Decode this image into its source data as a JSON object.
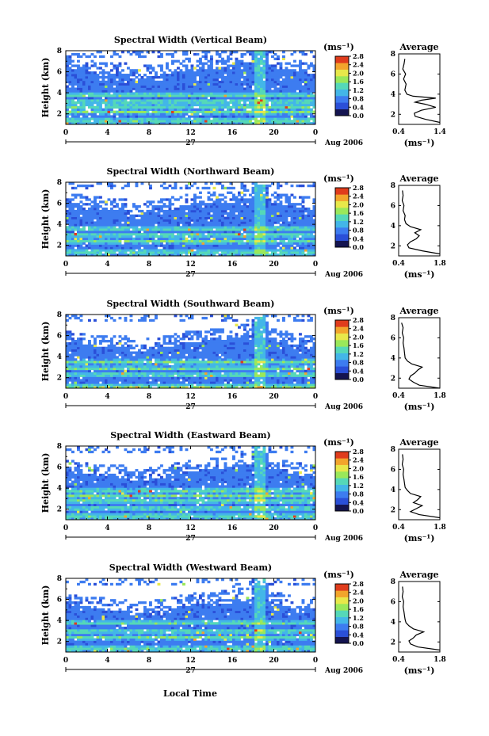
{
  "chart_data": [
    {
      "type": "heatmap",
      "title": "Spectral Width (Vertical Beam)",
      "ylabel": "Height (km)",
      "xlim": [
        0,
        24
      ],
      "xticks": [
        "0",
        "4",
        "8",
        "12",
        "16",
        "20",
        "0"
      ],
      "ylim": [
        1,
        8
      ],
      "yticks": [
        "2",
        "4",
        "6",
        "8"
      ],
      "date_label": "27",
      "month_label": "Aug 2006",
      "colorbar": {
        "unit": "(ms⁻¹)",
        "ticks": [
          "0.0",
          "0.4",
          "0.8",
          "1.2",
          "1.6",
          "2.0",
          "2.4",
          "2.8"
        ],
        "range": [
          0,
          2.8
        ]
      },
      "band_heights_km": [
        1.4,
        2.2,
        2.7,
        3.2,
        3.8
      ],
      "column_hour": 18.6,
      "cloud_top_km": 6.7,
      "profile": {
        "title": "Average",
        "xlabel": "(ms⁻¹)",
        "xlim": [
          0.4,
          1.4
        ],
        "xticks": [
          "0.4",
          "1.4"
        ],
        "ylim": [
          1,
          8
        ],
        "yticks": [
          "2",
          "4",
          "6",
          "8"
        ],
        "height_km": [
          1.2,
          1.5,
          1.8,
          2.1,
          2.4,
          2.7,
          3.0,
          3.2,
          3.4,
          3.6,
          3.8,
          4.0,
          4.4,
          5.0,
          5.5,
          6.0,
          6.5,
          7.0,
          7.5
        ],
        "width": [
          1.4,
          1.05,
          0.8,
          0.78,
          0.95,
          1.3,
          1.05,
          0.8,
          0.95,
          1.3,
          0.75,
          0.6,
          0.55,
          0.58,
          0.52,
          0.57,
          0.5,
          0.53,
          0.55
        ]
      }
    },
    {
      "type": "heatmap",
      "title": "Spectral Width (Northward Beam)",
      "ylabel": "Height (km)",
      "xlim": [
        0,
        24
      ],
      "xticks": [
        "0",
        "4",
        "8",
        "12",
        "16",
        "20",
        "0"
      ],
      "ylim": [
        1,
        8
      ],
      "yticks": [
        "2",
        "4",
        "6",
        "8"
      ],
      "date_label": "27",
      "month_label": "Aug 2006",
      "colorbar": {
        "unit": "(ms⁻¹)",
        "ticks": [
          "0.0",
          "0.4",
          "0.8",
          "1.2",
          "1.6",
          "2.0",
          "2.4",
          "2.8"
        ],
        "range": [
          0,
          2.8
        ]
      },
      "band_heights_km": [
        1.4,
        2.4,
        3.0,
        3.6
      ],
      "column_hour": 18.6,
      "cloud_top_km": 6.3,
      "profile": {
        "title": "Average",
        "xlabel": "(ms⁻¹)",
        "xlim": [
          0.4,
          1.8
        ],
        "xticks": [
          "0.4",
          "1.8"
        ],
        "ylim": [
          1,
          8
        ],
        "yticks": [
          "2",
          "4",
          "6",
          "8"
        ],
        "height_km": [
          1.2,
          1.5,
          1.8,
          2.1,
          2.4,
          2.7,
          3.0,
          3.3,
          3.6,
          3.9,
          4.2,
          4.6,
          5.0,
          5.5,
          6.0,
          6.5,
          7.0,
          7.5
        ],
        "width": [
          1.8,
          1.2,
          0.75,
          0.7,
          0.8,
          1.0,
          1.1,
          0.95,
          1.15,
          0.8,
          0.65,
          0.6,
          0.62,
          0.55,
          0.58,
          0.52,
          0.55,
          0.53
        ]
      }
    },
    {
      "type": "heatmap",
      "title": "Spectral Width (Southward Beam)",
      "ylabel": "Height (km)",
      "xlim": [
        0,
        24
      ],
      "xticks": [
        "0",
        "4",
        "8",
        "12",
        "16",
        "20",
        "0"
      ],
      "ylim": [
        1,
        8
      ],
      "yticks": [
        "2",
        "4",
        "6",
        "8"
      ],
      "date_label": "27",
      "month_label": "Aug 2006",
      "colorbar": {
        "unit": "(ms⁻¹)",
        "ticks": [
          "0.0",
          "0.4",
          "0.8",
          "1.2",
          "1.6",
          "2.0",
          "2.4",
          "2.8"
        ],
        "range": [
          0,
          2.8
        ]
      },
      "band_heights_km": [
        1.2,
        2.3,
        2.9,
        3.5
      ],
      "column_hour": 18.6,
      "cloud_top_km": 5.8,
      "profile": {
        "title": "Average",
        "xlabel": "(ms⁻¹)",
        "xlim": [
          0.4,
          1.8
        ],
        "xticks": [
          "0.4",
          "1.8"
        ],
        "ylim": [
          1,
          8
        ],
        "yticks": [
          "2",
          "4",
          "6",
          "8"
        ],
        "height_km": [
          1.0,
          1.3,
          1.6,
          1.9,
          2.2,
          2.5,
          2.8,
          3.1,
          3.4,
          3.7,
          4.0,
          4.5,
          5.0,
          5.5,
          6.0,
          6.5,
          7.0,
          7.5
        ],
        "width": [
          1.8,
          1.1,
          0.9,
          0.75,
          0.8,
          0.95,
          1.05,
          1.2,
          0.85,
          0.7,
          0.62,
          0.6,
          0.58,
          0.55,
          0.57,
          0.52,
          0.55,
          0.5
        ]
      }
    },
    {
      "type": "heatmap",
      "title": "Spectral Width (Eastward Beam)",
      "ylabel": "Height (km)",
      "xlim": [
        0,
        24
      ],
      "xticks": [
        "0",
        "4",
        "8",
        "12",
        "16",
        "20",
        "0"
      ],
      "ylim": [
        1,
        8
      ],
      "yticks": [
        "2",
        "4",
        "6",
        "8"
      ],
      "date_label": "27",
      "month_label": "Aug 2006",
      "colorbar": {
        "unit": "(ms⁻¹)",
        "ticks": [
          "0.0",
          "0.4",
          "0.8",
          "1.2",
          "1.6",
          "2.0",
          "2.4",
          "2.8"
        ],
        "range": [
          0,
          2.8
        ]
      },
      "band_heights_km": [
        1.4,
        2.1,
        2.8,
        3.3,
        3.8
      ],
      "column_hour": 18.6,
      "cloud_top_km": 6.0,
      "profile": {
        "title": "Average",
        "xlabel": "(ms⁻¹)",
        "xlim": [
          0.4,
          1.8
        ],
        "xticks": [
          "0.4",
          "1.8"
        ],
        "ylim": [
          1,
          8
        ],
        "yticks": [
          "2",
          "4",
          "6",
          "8"
        ],
        "height_km": [
          1.2,
          1.5,
          1.8,
          2.1,
          2.4,
          2.7,
          3.0,
          3.3,
          3.6,
          3.9,
          4.2,
          4.6,
          5.0,
          5.5,
          6.0,
          6.5,
          7.0,
          7.5
        ],
        "width": [
          1.8,
          1.1,
          0.8,
          1.0,
          1.2,
          0.9,
          1.05,
          1.15,
          0.8,
          0.7,
          0.62,
          0.6,
          0.58,
          0.55,
          0.57,
          0.52,
          0.55,
          0.53
        ]
      }
    },
    {
      "type": "heatmap",
      "title": "Spectral Width (Westward Beam)",
      "ylabel": "Height (km)",
      "xlim": [
        0,
        24
      ],
      "xticks": [
        "0",
        "4",
        "8",
        "12",
        "16",
        "20",
        "0"
      ],
      "ylim": [
        1,
        8
      ],
      "yticks": [
        "2",
        "4",
        "6",
        "8"
      ],
      "date_label": "27",
      "month_label": "Aug 2006",
      "colorbar": {
        "unit": "(ms⁻¹)",
        "ticks": [
          "0.0",
          "0.4",
          "0.8",
          "1.2",
          "1.6",
          "2.0",
          "2.4",
          "2.8"
        ],
        "range": [
          0,
          2.8
        ]
      },
      "band_heights_km": [
        1.4,
        2.4,
        3.0,
        3.8
      ],
      "column_hour": 18.6,
      "cloud_top_km": 5.9,
      "profile": {
        "title": "Average",
        "xlabel": "(ms⁻¹)",
        "xlim": [
          0.4,
          1.8
        ],
        "xticks": [
          "0.4",
          "1.8"
        ],
        "ylim": [
          1,
          8
        ],
        "yticks": [
          "2",
          "4",
          "6",
          "8"
        ],
        "height_km": [
          1.2,
          1.5,
          1.8,
          2.1,
          2.4,
          2.7,
          3.0,
          3.3,
          3.6,
          3.9,
          4.2,
          4.6,
          5.0,
          5.5,
          6.0,
          6.5,
          7.0,
          7.5
        ],
        "width": [
          1.8,
          1.05,
          0.8,
          0.75,
          0.9,
          1.0,
          1.25,
          0.9,
          0.75,
          0.65,
          0.62,
          0.6,
          0.58,
          0.55,
          0.57,
          0.52,
          0.55,
          0.53
        ]
      }
    }
  ],
  "xaxis_label": "Local Time",
  "colors": {
    "colormap": [
      "#141450",
      "#2a4fd8",
      "#3d7cf0",
      "#43b6e8",
      "#55d8b8",
      "#9ae85a",
      "#e8e84a",
      "#f2a52c",
      "#e03c1c"
    ]
  }
}
